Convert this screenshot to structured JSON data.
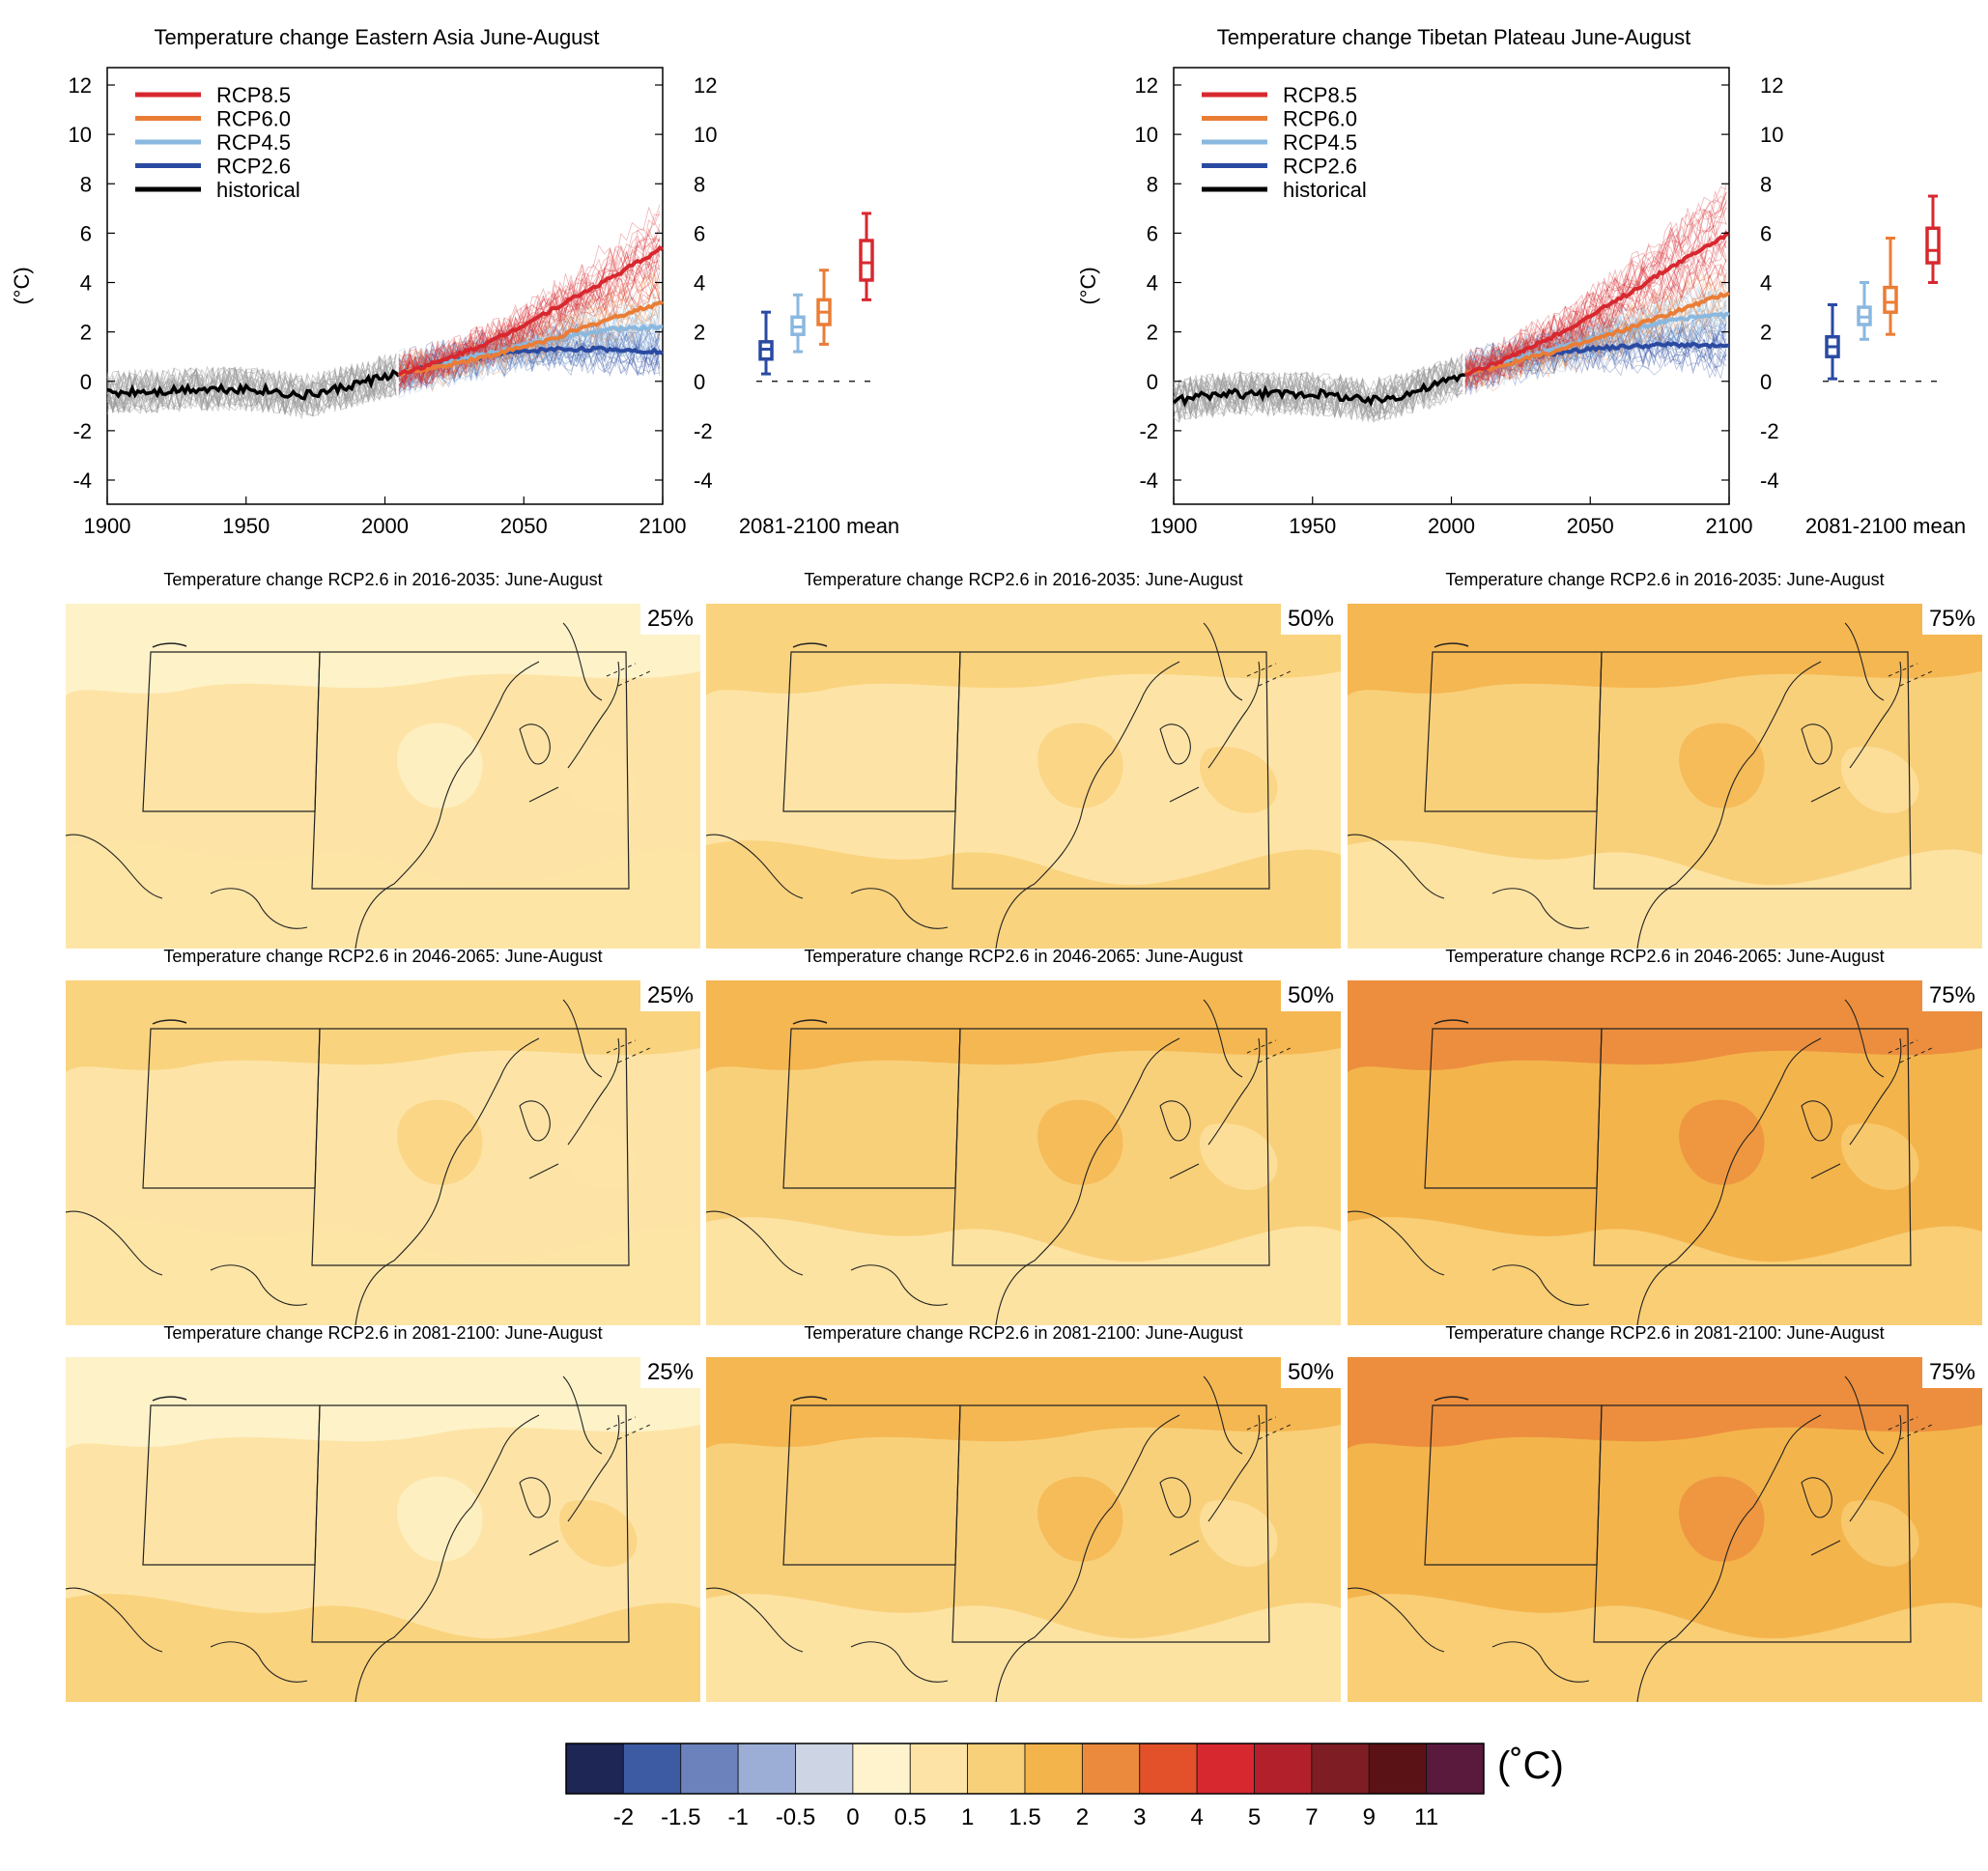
{
  "colors": {
    "rcp85": "#d7282f",
    "rcp60": "#ea7d36",
    "rcp45": "#8ab8df",
    "rcp26": "#2a4aa1",
    "historical": "#000000",
    "historical_spread": "#9a9a9a"
  },
  "timeseries_panels": [
    {
      "title": "Temperature change Eastern Asia June-August",
      "ylabel": "(°C)",
      "boxplot_label": "2081-2100 mean"
    },
    {
      "title": "Temperature change Tibetan Plateau June-August",
      "ylabel": "(°C)",
      "boxplot_label": "2081-2100 mean"
    }
  ],
  "legend": [
    "RCP8.5",
    "RCP6.0",
    "RCP4.5",
    "RCP2.6",
    "historical"
  ],
  "chart_data": [
    {
      "type": "line",
      "title": "Temperature change Eastern Asia June-August",
      "ylabel": "(°C)",
      "xlim": [
        1900,
        2100
      ],
      "ylim": [
        -5,
        12.5
      ],
      "xticks": [
        1900,
        1950,
        2000,
        2050,
        2100
      ],
      "yticks": [
        12,
        10,
        8,
        6,
        4,
        2,
        0,
        -2,
        -4
      ],
      "series": [
        {
          "name": "historical",
          "x": [
            1900,
            1910,
            1920,
            1930,
            1940,
            1950,
            1960,
            1970,
            1980,
            1990,
            2000,
            2005
          ],
          "values": [
            -0.5,
            -0.4,
            -0.4,
            -0.3,
            -0.3,
            -0.3,
            -0.4,
            -0.6,
            -0.4,
            -0.1,
            0.2,
            0.3
          ]
        },
        {
          "name": "RCP2.6",
          "x": [
            2005,
            2020,
            2040,
            2060,
            2080,
            2100
          ],
          "values": [
            0.3,
            0.7,
            1.1,
            1.3,
            1.3,
            1.2
          ]
        },
        {
          "name": "RCP4.5",
          "x": [
            2005,
            2020,
            2040,
            2060,
            2080,
            2100
          ],
          "values": [
            0.3,
            0.7,
            1.2,
            1.7,
            2.1,
            2.2
          ]
        },
        {
          "name": "RCP6.0",
          "x": [
            2005,
            2020,
            2040,
            2060,
            2080,
            2100
          ],
          "values": [
            0.3,
            0.6,
            1.1,
            1.7,
            2.5,
            3.2
          ]
        },
        {
          "name": "RCP8.5",
          "x": [
            2005,
            2020,
            2040,
            2060,
            2080,
            2100
          ],
          "values": [
            0.3,
            0.8,
            1.7,
            2.9,
            4.1,
            5.4
          ]
        }
      ],
      "boxplots": [
        {
          "name": "RCP2.6",
          "min": 0.3,
          "q1": 0.9,
          "median": 1.3,
          "q3": 1.6,
          "max": 2.8
        },
        {
          "name": "RCP4.5",
          "min": 1.2,
          "q1": 1.9,
          "median": 2.2,
          "q3": 2.6,
          "max": 3.5
        },
        {
          "name": "RCP6.0",
          "min": 1.5,
          "q1": 2.3,
          "median": 2.8,
          "q3": 3.3,
          "max": 4.5
        },
        {
          "name": "RCP8.5",
          "min": 3.3,
          "q1": 4.1,
          "median": 4.8,
          "q3": 5.7,
          "max": 6.8
        }
      ],
      "legend_position": "top-left"
    },
    {
      "type": "line",
      "title": "Temperature change Tibetan Plateau June-August",
      "ylabel": "(°C)",
      "xlim": [
        1900,
        2100
      ],
      "ylim": [
        -5,
        12.5
      ],
      "xticks": [
        1900,
        1950,
        2000,
        2050,
        2100
      ],
      "yticks": [
        12,
        10,
        8,
        6,
        4,
        2,
        0,
        -2,
        -4
      ],
      "series": [
        {
          "name": "historical",
          "x": [
            1900,
            1910,
            1920,
            1930,
            1940,
            1950,
            1960,
            1970,
            1980,
            1990,
            2000,
            2005
          ],
          "values": [
            -0.8,
            -0.6,
            -0.5,
            -0.5,
            -0.5,
            -0.5,
            -0.6,
            -0.8,
            -0.6,
            -0.3,
            0.1,
            0.3
          ]
        },
        {
          "name": "RCP2.6",
          "x": [
            2005,
            2020,
            2040,
            2060,
            2080,
            2100
          ],
          "values": [
            0.3,
            0.8,
            1.2,
            1.4,
            1.5,
            1.4
          ]
        },
        {
          "name": "RCP4.5",
          "x": [
            2005,
            2020,
            2040,
            2060,
            2080,
            2100
          ],
          "values": [
            0.3,
            0.8,
            1.4,
            2.0,
            2.5,
            2.7
          ]
        },
        {
          "name": "RCP6.0",
          "x": [
            2005,
            2020,
            2040,
            2060,
            2080,
            2100
          ],
          "values": [
            0.3,
            0.7,
            1.3,
            2.0,
            2.8,
            3.6
          ]
        },
        {
          "name": "RCP8.5",
          "x": [
            2005,
            2020,
            2040,
            2060,
            2080,
            2100
          ],
          "values": [
            0.3,
            0.9,
            2.0,
            3.3,
            4.7,
            6.0
          ]
        }
      ],
      "boxplots": [
        {
          "name": "RCP2.6",
          "min": 0.1,
          "q1": 1.0,
          "median": 1.4,
          "q3": 1.8,
          "max": 3.1
        },
        {
          "name": "RCP4.5",
          "min": 1.7,
          "q1": 2.3,
          "median": 2.6,
          "q3": 3.0,
          "max": 4.0
        },
        {
          "name": "RCP6.0",
          "min": 1.9,
          "q1": 2.8,
          "median": 3.2,
          "q3": 3.8,
          "max": 5.8
        },
        {
          "name": "RCP8.5",
          "min": 4.0,
          "q1": 4.8,
          "median": 5.3,
          "q3": 6.2,
          "max": 7.5
        }
      ],
      "legend_position": "top-left"
    }
  ],
  "maps": [
    {
      "title": "Temperature change RCP2.6 in 2016-2035: June-August",
      "pct": "25%",
      "base": "#fde4a6",
      "patch": "#fef3cc",
      "patch2": "#fde4a6"
    },
    {
      "title": "Temperature change RCP2.6 in 2016-2035: June-August",
      "pct": "50%",
      "base": "#fde4a6",
      "patch": "#f9d07a",
      "patch2": "#f9d07a"
    },
    {
      "title": "Temperature change RCP2.6 in 2016-2035: June-August",
      "pct": "75%",
      "base": "#f9d07a",
      "patch": "#f4b44c",
      "patch2": "#fde4a6"
    },
    {
      "title": "Temperature change RCP2.6 in 2046-2065: June-August",
      "pct": "25%",
      "base": "#fde4a6",
      "patch": "#f9d07a",
      "patch2": "#fde4a6"
    },
    {
      "title": "Temperature change RCP2.6 in 2046-2065: June-August",
      "pct": "50%",
      "base": "#f9d07a",
      "patch": "#f4b44c",
      "patch2": "#fde4a6"
    },
    {
      "title": "Temperature change RCP2.6 in 2046-2065: June-August",
      "pct": "75%",
      "base": "#f4b44c",
      "patch": "#eb8a3c",
      "patch2": "#f9d07a"
    },
    {
      "title": "Temperature change RCP2.6 in 2081-2100: June-August",
      "pct": "25%",
      "base": "#fde4a6",
      "patch": "#fef3cc",
      "patch2": "#f9d07a"
    },
    {
      "title": "Temperature change RCP2.6 in 2081-2100: June-August",
      "pct": "50%",
      "base": "#f9d07a",
      "patch": "#f4b44c",
      "patch2": "#fde4a6"
    },
    {
      "title": "Temperature change RCP2.6 in 2081-2100: June-August",
      "pct": "75%",
      "base": "#f4b44c",
      "patch": "#eb8a3c",
      "patch2": "#f9d07a"
    }
  ],
  "colorbar": {
    "unit": "(˚C)",
    "colors": [
      "#1d2654",
      "#3d5ba3",
      "#6b82bc",
      "#9caed6",
      "#cdd5e4",
      "#fef3cc",
      "#fde4a6",
      "#f9d07a",
      "#f4b44c",
      "#eb8a3c",
      "#e2512a",
      "#d7282f",
      "#b2202c",
      "#7e1d23",
      "#5b1216",
      "#5a1a3e"
    ],
    "labels": [
      "-2",
      "-1.5",
      "-1",
      "-0.5",
      "0",
      "0.5",
      "1",
      "1.5",
      "2",
      "3",
      "4",
      "5",
      "7",
      "9",
      "11"
    ]
  }
}
